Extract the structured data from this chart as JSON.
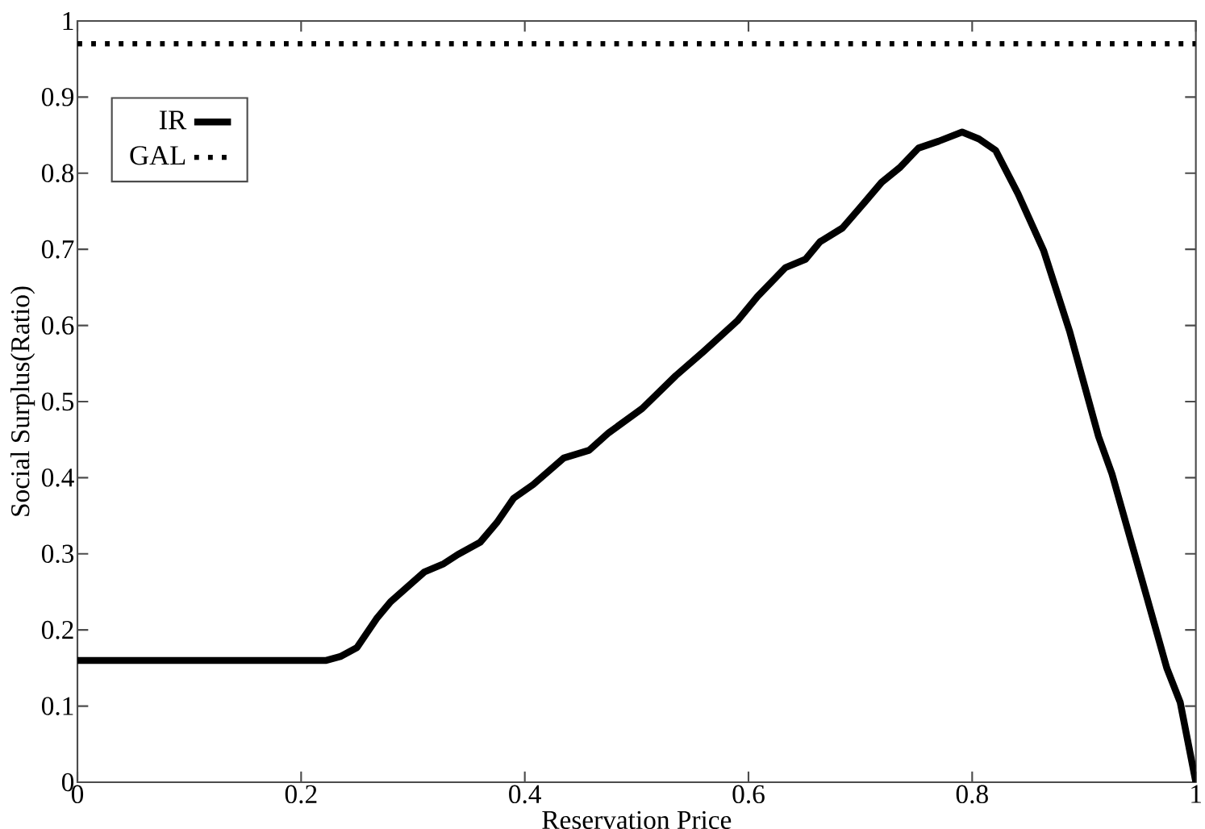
{
  "chart_data": {
    "type": "line",
    "xlabel": "Reservation Price",
    "ylabel": "Social Surplus(Ratio)",
    "xlim": [
      0,
      1
    ],
    "ylim": [
      0,
      1
    ],
    "xticks": [
      0,
      0.2,
      0.4,
      0.6,
      0.8,
      1
    ],
    "yticks": [
      0,
      0.1,
      0.2,
      0.3,
      0.4,
      0.5,
      0.6,
      0.7,
      0.8,
      0.9,
      1
    ],
    "legend": "top left",
    "grid": false,
    "marker": "none",
    "series": [
      {
        "name": "IR",
        "color": "#000000",
        "line_style": "solid",
        "x": [
          0,
          0.2225,
          0.235,
          0.25,
          0.2675,
          0.28,
          0.31,
          0.3275,
          0.34,
          0.36,
          0.375,
          0.39,
          0.4075,
          0.435,
          0.4575,
          0.475,
          0.505,
          0.535,
          0.56,
          0.59,
          0.608,
          0.633,
          0.651,
          0.664,
          0.684,
          0.704,
          0.719,
          0.735,
          0.752,
          0.77,
          0.791,
          0.806,
          0.821,
          0.841,
          0.864,
          0.887,
          0.913,
          0.925,
          0.956,
          0.974,
          0.986,
          1
        ],
        "values": [
          0.16,
          0.16,
          0.165,
          0.177,
          0.215,
          0.237,
          0.276,
          0.287,
          0.299,
          0.315,
          0.341,
          0.373,
          0.391,
          0.426,
          0.436,
          0.459,
          0.491,
          0.534,
          0.566,
          0.606,
          0.638,
          0.676,
          0.687,
          0.71,
          0.728,
          0.762,
          0.788,
          0.807,
          0.833,
          0.842,
          0.854,
          0.845,
          0.83,
          0.773,
          0.698,
          0.593,
          0.454,
          0.405,
          0.244,
          0.15,
          0.105,
          0
        ]
      },
      {
        "name": "GAL",
        "color": "#000000",
        "line_style": "dotted",
        "x": [
          0,
          1
        ],
        "values": [
          0.97,
          0.97
        ]
      }
    ]
  }
}
